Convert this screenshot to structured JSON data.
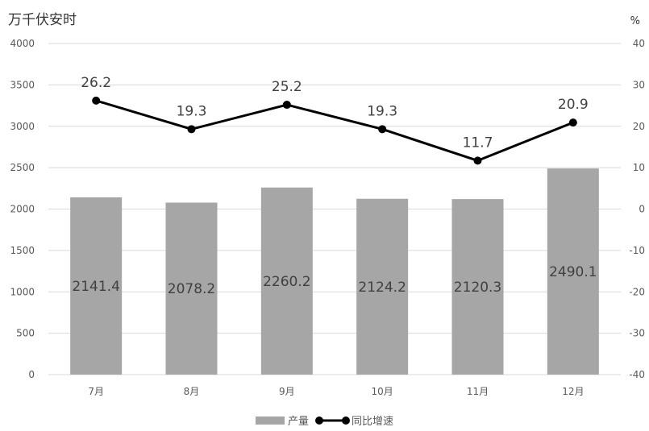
{
  "chart_data": {
    "type": "bar",
    "categories": [
      "7月",
      "8月",
      "9月",
      "10月",
      "11月",
      "12月"
    ],
    "series": [
      {
        "name": "产量",
        "type": "bar",
        "axis": "left",
        "values": [
          2141.4,
          2078.2,
          2260.2,
          2124.2,
          2120.3,
          2490.1
        ]
      },
      {
        "name": "同比增速",
        "type": "line",
        "axis": "right",
        "values": [
          26.2,
          19.3,
          25.2,
          19.3,
          11.7,
          20.9
        ]
      }
    ],
    "left_axis": {
      "unit": "万千伏安时",
      "ylim": [
        0,
        4000
      ],
      "ticks": [
        "0",
        "500",
        "1000",
        "1500",
        "2000",
        "2500",
        "3000",
        "3500",
        "4000"
      ]
    },
    "right_axis": {
      "unit": "%",
      "ylim": [
        -40,
        40
      ],
      "ticks": [
        "-40",
        "-30",
        "-20",
        "-10",
        "0",
        "10",
        "20",
        "30",
        "40"
      ]
    },
    "grid": true,
    "legend_position": "bottom",
    "colors": {
      "bar": "#a6a6a6",
      "line": "#000000",
      "grid": "#d9d9d9",
      "axis_text": "#595959"
    }
  }
}
